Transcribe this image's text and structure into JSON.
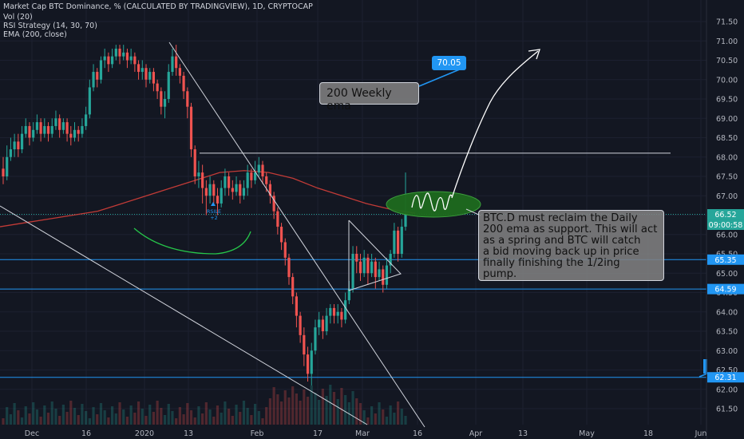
{
  "header": {
    "title": "Market Cap BTC Dominance, % (CALCULATED BY TRADINGVIEW), 1D, CRYPTOCAP",
    "indicators": [
      "Vol (20)",
      "RSI Strategy (14, 30, 70)",
      "EMA (200, close)"
    ]
  },
  "annotations": {
    "callout_value": "70.05",
    "note_ema": "200 Weekly ema",
    "note_main": "BTC.D must reclaim the Daily\n200 ema as support. This will act\nas a spring and BTC will catch\na bid moving back up in price\nfinally finishing the 1/2ing\npump.",
    "signal_label": "RSILE\n+2"
  },
  "price_labels": {
    "current": "66.52",
    "countdown": "09:00:58",
    "line_a": "65.35",
    "line_b": "64.59",
    "line_c": "62.31"
  },
  "colors": {
    "background": "#131722",
    "bull": "#26a69a",
    "bear": "#ef5350",
    "ema": "#c23b37",
    "hline": "#2196f3",
    "text": "#b2b5be",
    "ellipse": "#1e6b1e"
  },
  "chart_data": {
    "type": "candlestick",
    "symbol": "Market Cap BTC Dominance, %",
    "interval": "1D",
    "y_ticks": [
      "71.50",
      "71.00",
      "70.50",
      "70.00",
      "69.50",
      "69.00",
      "68.50",
      "68.00",
      "67.50",
      "67.00",
      "66.50",
      "66.00",
      "65.50",
      "65.00",
      "64.50",
      "64.00",
      "63.50",
      "63.00",
      "62.50",
      "62.00",
      "61.50"
    ],
    "x_ticks": [
      "Dec",
      "16",
      "2020",
      "13",
      "Feb",
      "17",
      "Mar",
      "16",
      "Apr",
      "13",
      "May",
      "18",
      "Jun"
    ],
    "ylim": [
      61.2,
      71.7
    ],
    "candles": [
      [
        67.7,
        67.5,
        68.0,
        67.3
      ],
      [
        67.5,
        68.0,
        68.3,
        67.4
      ],
      [
        68.0,
        68.2,
        68.5,
        67.9
      ],
      [
        68.2,
        68.4,
        68.6,
        68.0
      ],
      [
        68.4,
        68.2,
        68.6,
        68.0
      ],
      [
        68.2,
        68.6,
        68.8,
        68.1
      ],
      [
        68.6,
        68.8,
        69.0,
        68.5
      ],
      [
        68.8,
        68.5,
        68.9,
        68.3
      ],
      [
        68.5,
        68.7,
        68.9,
        68.4
      ],
      [
        68.7,
        68.9,
        69.1,
        68.6
      ],
      [
        68.9,
        68.6,
        69.0,
        68.4
      ],
      [
        68.6,
        68.8,
        69.0,
        68.5
      ],
      [
        68.8,
        68.6,
        68.9,
        68.4
      ],
      [
        68.6,
        68.8,
        69.0,
        68.5
      ],
      [
        68.8,
        69.0,
        69.2,
        68.7
      ],
      [
        69.0,
        68.7,
        69.1,
        68.5
      ],
      [
        68.7,
        68.9,
        69.0,
        68.6
      ],
      [
        68.9,
        68.6,
        69.0,
        68.4
      ],
      [
        68.6,
        68.5,
        68.8,
        68.3
      ],
      [
        68.5,
        68.7,
        68.9,
        68.4
      ],
      [
        68.7,
        68.6,
        68.8,
        68.4
      ],
      [
        68.6,
        68.8,
        69.0,
        68.5
      ],
      [
        68.8,
        69.1,
        69.3,
        68.7
      ],
      [
        69.1,
        69.8,
        70.0,
        69.0
      ],
      [
        69.8,
        70.2,
        70.4,
        69.7
      ],
      [
        70.2,
        70.0,
        70.3,
        69.8
      ],
      [
        70.0,
        70.5,
        70.6,
        69.9
      ],
      [
        70.5,
        70.6,
        70.8,
        70.3
      ],
      [
        70.6,
        70.4,
        70.7,
        70.2
      ],
      [
        70.4,
        70.6,
        70.8,
        70.3
      ],
      [
        70.6,
        70.8,
        70.9,
        70.5
      ],
      [
        70.8,
        70.6,
        70.9,
        70.4
      ],
      [
        70.6,
        70.7,
        70.9,
        70.5
      ],
      [
        70.7,
        70.5,
        70.8,
        70.3
      ],
      [
        70.5,
        70.6,
        70.8,
        70.4
      ],
      [
        70.6,
        70.4,
        70.7,
        70.2
      ],
      [
        70.4,
        70.2,
        70.5,
        70.0
      ],
      [
        70.2,
        70.3,
        70.5,
        70.0
      ],
      [
        70.3,
        70.0,
        70.4,
        69.8
      ],
      [
        70.0,
        70.2,
        70.3,
        69.9
      ],
      [
        70.2,
        69.9,
        70.3,
        69.7
      ],
      [
        69.9,
        69.7,
        70.0,
        69.5
      ],
      [
        69.7,
        69.3,
        69.8,
        69.1
      ],
      [
        69.3,
        69.5,
        69.7,
        69.0
      ],
      [
        69.5,
        70.2,
        70.4,
        69.4
      ],
      [
        70.2,
        70.6,
        70.8,
        70.1
      ],
      [
        70.6,
        70.3,
        70.9,
        70.1
      ],
      [
        70.3,
        70.1,
        70.4,
        69.9
      ],
      [
        70.1,
        69.7,
        70.2,
        69.5
      ],
      [
        69.7,
        69.3,
        69.8,
        69.0
      ],
      [
        69.3,
        68.2,
        69.4,
        68.0
      ],
      [
        68.2,
        67.5,
        68.3,
        67.3
      ],
      [
        67.5,
        67.6,
        67.9,
        67.2
      ],
      [
        67.6,
        67.2,
        67.8,
        66.8
      ],
      [
        67.2,
        67.0,
        67.4,
        66.5
      ],
      [
        67.0,
        67.3,
        67.5,
        66.8
      ],
      [
        67.3,
        67.0,
        67.4,
        66.8
      ],
      [
        67.0,
        66.8,
        67.2,
        66.5
      ],
      [
        66.8,
        67.2,
        67.4,
        66.7
      ],
      [
        67.2,
        67.5,
        67.7,
        67.0
      ],
      [
        67.5,
        67.2,
        67.6,
        67.0
      ],
      [
        67.2,
        67.1,
        67.4,
        66.9
      ],
      [
        67.1,
        67.3,
        67.5,
        67.0
      ],
      [
        67.3,
        67.0,
        67.4,
        66.8
      ],
      [
        67.0,
        67.2,
        67.4,
        66.9
      ],
      [
        67.2,
        67.6,
        67.8,
        67.0
      ],
      [
        67.6,
        67.4,
        67.7,
        67.2
      ],
      [
        67.4,
        67.6,
        67.9,
        67.3
      ],
      [
        67.6,
        67.8,
        68.0,
        67.5
      ],
      [
        67.8,
        67.5,
        67.9,
        67.3
      ],
      [
        67.5,
        67.3,
        67.6,
        67.1
      ],
      [
        67.3,
        67.0,
        67.4,
        66.8
      ],
      [
        67.0,
        66.6,
        67.1,
        66.4
      ],
      [
        66.6,
        66.2,
        66.7,
        66.0
      ],
      [
        66.2,
        65.8,
        66.3,
        65.6
      ],
      [
        65.8,
        65.4,
        65.9,
        65.2
      ],
      [
        65.4,
        64.9,
        65.5,
        64.7
      ],
      [
        64.9,
        64.4,
        65.0,
        64.2
      ],
      [
        64.4,
        63.9,
        64.5,
        63.6
      ],
      [
        63.9,
        63.4,
        64.0,
        63.2
      ],
      [
        63.4,
        62.9,
        63.6,
        62.6
      ],
      [
        62.9,
        62.4,
        63.1,
        62.2
      ],
      [
        62.4,
        63.0,
        63.2,
        62.1
      ],
      [
        63.0,
        63.6,
        63.8,
        62.9
      ],
      [
        63.6,
        63.8,
        64.0,
        63.4
      ],
      [
        63.8,
        63.5,
        63.9,
        63.3
      ],
      [
        63.5,
        63.9,
        64.1,
        63.4
      ],
      [
        63.9,
        64.1,
        64.2,
        63.7
      ],
      [
        64.1,
        63.9,
        64.2,
        63.7
      ],
      [
        63.9,
        64.0,
        64.2,
        63.7
      ],
      [
        64.0,
        63.8,
        64.1,
        63.6
      ],
      [
        63.8,
        64.3,
        64.5,
        63.7
      ],
      [
        64.3,
        64.6,
        64.8,
        64.2
      ],
      [
        64.6,
        65.5,
        65.7,
        64.5
      ],
      [
        65.5,
        65.3,
        65.7,
        65.0
      ],
      [
        65.3,
        65.0,
        65.5,
        64.8
      ],
      [
        65.0,
        65.4,
        65.6,
        64.9
      ],
      [
        65.4,
        65.0,
        65.5,
        64.7
      ],
      [
        65.0,
        65.3,
        65.5,
        64.9
      ],
      [
        65.3,
        64.9,
        65.4,
        64.6
      ],
      [
        64.9,
        65.1,
        65.3,
        64.8
      ],
      [
        65.1,
        64.7,
        65.2,
        64.5
      ],
      [
        64.7,
        65.2,
        65.4,
        64.6
      ],
      [
        65.2,
        65.5,
        65.6,
        65.0
      ],
      [
        65.5,
        66.1,
        66.3,
        65.4
      ],
      [
        66.1,
        65.5,
        66.2,
        65.3
      ],
      [
        65.5,
        66.2,
        66.4,
        65.4
      ],
      [
        66.2,
        66.52,
        67.6,
        66.1
      ]
    ],
    "ema_200": [
      66.2,
      66.3,
      66.4,
      66.5,
      66.6,
      66.8,
      67.0,
      67.2,
      67.4,
      67.6,
      67.65,
      67.6,
      67.45,
      67.2,
      67.0,
      66.8,
      66.65,
      66.55
    ],
    "horizontal_levels": [
      68.1,
      66.52,
      65.35,
      64.59,
      62.31
    ]
  }
}
